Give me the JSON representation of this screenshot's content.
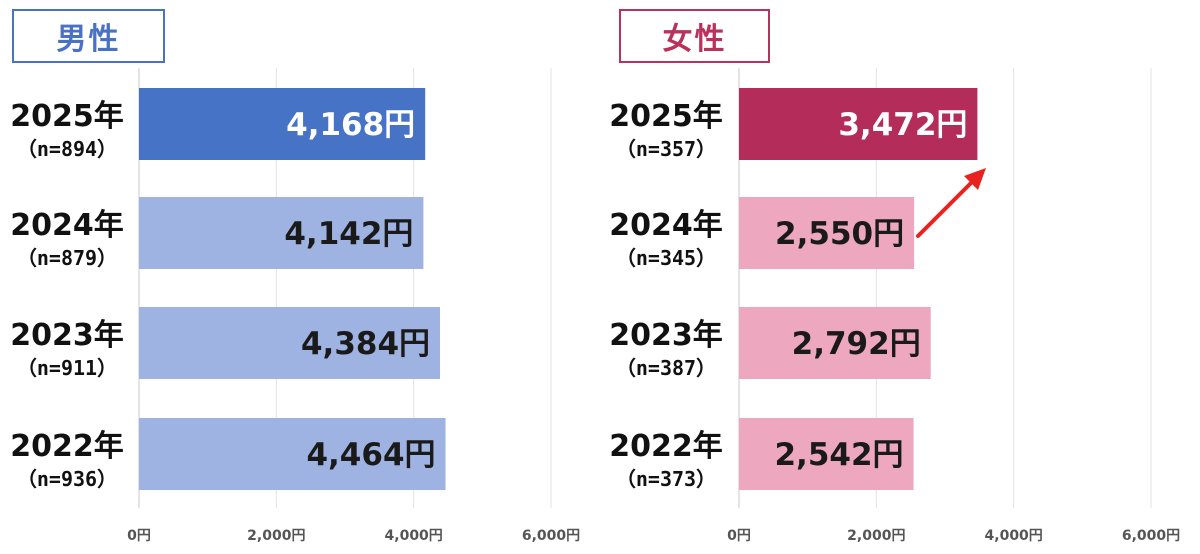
{
  "colors": {
    "male_accent": "#4a72c4",
    "male_latest": "#4673c6",
    "male_other": "#9fb3e3",
    "female_accent": "#b8335c",
    "female_latest": "#b32c5a",
    "female_other": "#eda7bf",
    "arrow": "#e8221f"
  },
  "chart_data": [
    {
      "type": "bar",
      "orientation": "horizontal",
      "panel_label": "男性",
      "categories": [
        "2025年",
        "2024年",
        "2023年",
        "2022年"
      ],
      "sample_sizes": [
        "（n=894）",
        "（n=879）",
        "（n=911）",
        "（n=936）"
      ],
      "values": [
        4168,
        4142,
        4384,
        4464
      ],
      "value_labels": [
        "4,168円",
        "4,142円",
        "4,384円",
        "4,464円"
      ],
      "xlim": [
        0,
        6000
      ],
      "ticks": [
        0,
        2000,
        4000,
        6000
      ],
      "tick_labels": [
        "0円",
        "2,000円",
        "4,000円",
        "6,000円"
      ],
      "grid": true
    },
    {
      "type": "bar",
      "orientation": "horizontal",
      "panel_label": "女性",
      "categories": [
        "2025年",
        "2024年",
        "2023年",
        "2022年"
      ],
      "sample_sizes": [
        "（n=357）",
        "（n=345）",
        "（n=387）",
        "（n=373）"
      ],
      "values": [
        3472,
        2550,
        2792,
        2542
      ],
      "value_labels": [
        "3,472円",
        "2,550円",
        "2,792円",
        "2,542円"
      ],
      "xlim": [
        0,
        6000
      ],
      "ticks": [
        0,
        2000,
        4000,
        6000
      ],
      "tick_labels": [
        "0円",
        "2,000円",
        "4,000円",
        "6,000円"
      ],
      "grid": true,
      "annotation": "arrow from 2024 bar up to 2025 bar"
    }
  ]
}
